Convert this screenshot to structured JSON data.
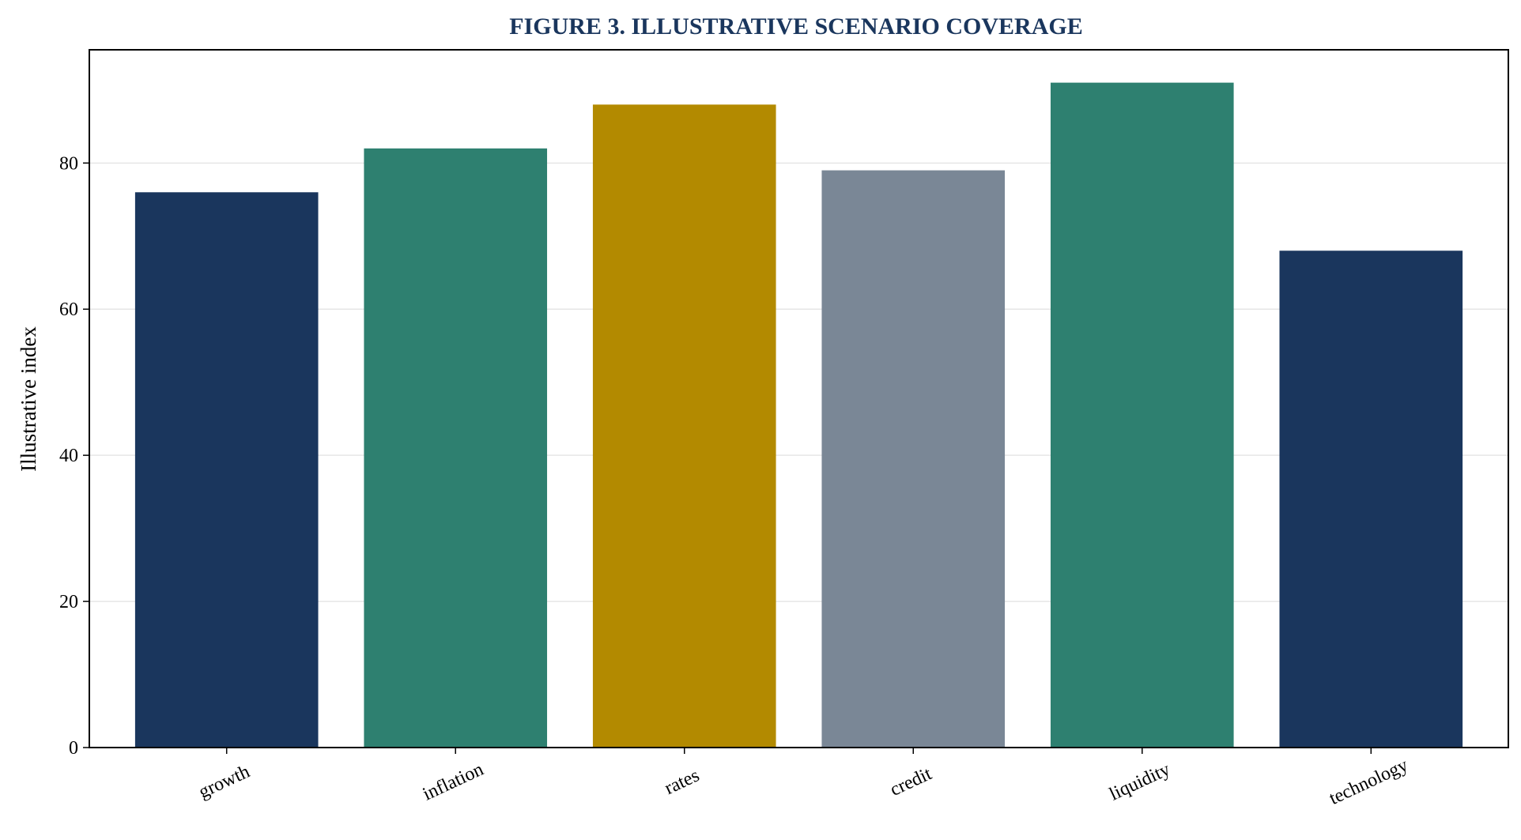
{
  "chart_data": {
    "type": "bar",
    "title": "FIGURE 3. ILLUSTRATIVE SCENARIO COVERAGE",
    "xlabel": "",
    "ylabel": "Illustrative index",
    "categories": [
      "growth",
      "inflation",
      "rates",
      "credit",
      "liquidity",
      "technology"
    ],
    "values": [
      76,
      82,
      88,
      79,
      91,
      68
    ],
    "bar_colors": [
      "#1a365d",
      "#2e8070",
      "#b38a00",
      "#7a8796",
      "#2e8070",
      "#1a365d"
    ],
    "yticks": [
      0,
      20,
      40,
      60,
      80
    ],
    "ylim": [
      0,
      95.5
    ],
    "grid": true,
    "grid_color": "#e6e6e6",
    "title_color": "#1a365d"
  }
}
